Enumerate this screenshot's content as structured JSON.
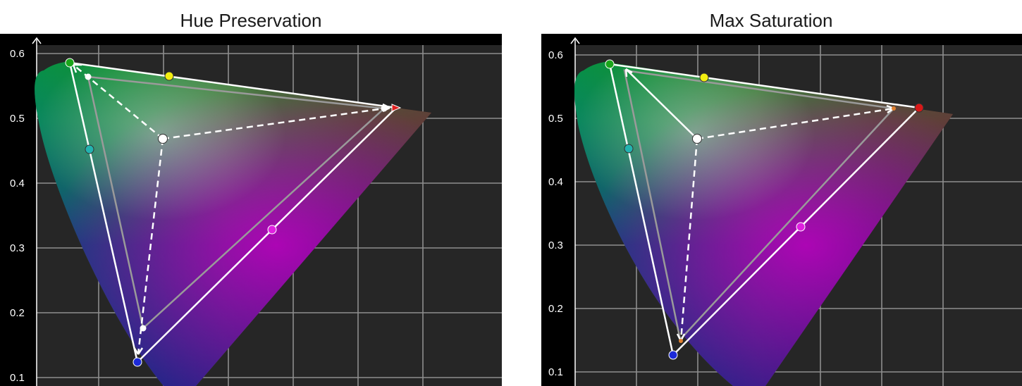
{
  "panels": [
    {
      "title": "Hue Preservation",
      "y_ticks": [
        "0.6",
        "0.5",
        "0.4",
        "0.3",
        "0.2",
        "0.1"
      ],
      "swatch_colors": {
        "green": "#1aa51a",
        "yellow": "#f2ee10",
        "cyan": "#23b3b0",
        "magenta": "#e020e0",
        "blue": "#1c2ad8",
        "red": "#e02020",
        "white": "#ffffff"
      }
    },
    {
      "title": "Max Saturation",
      "y_ticks": [
        "0.6",
        "0.5",
        "0.4",
        "0.3",
        "0.2",
        "0.1"
      ],
      "swatch_colors": {
        "green": "#1aa51a",
        "yellow": "#f2ee10",
        "cyan": "#23b3b0",
        "magenta": "#e020e0",
        "blue": "#1c2ad8",
        "red": "#d81818",
        "white": "#ffffff"
      }
    }
  ]
}
